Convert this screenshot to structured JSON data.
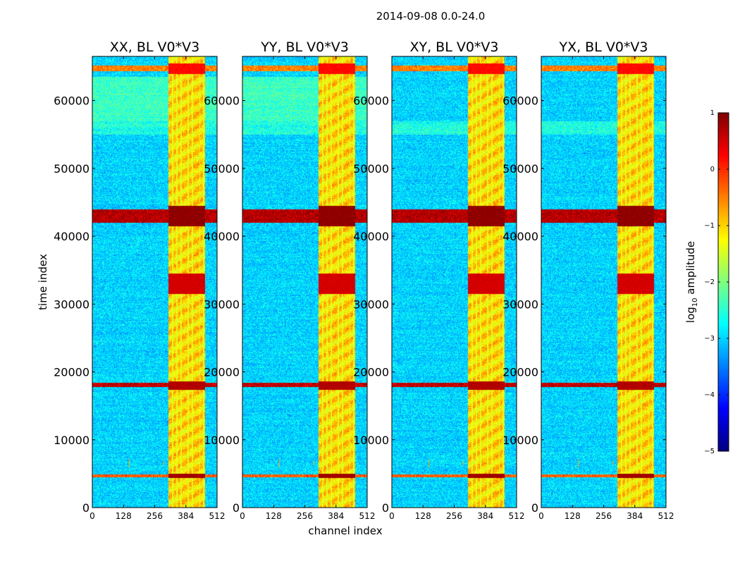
{
  "chart_data": {
    "type": "heatmap",
    "title": "2014-09-08 0.0-24.0",
    "xlabel": "channel index",
    "ylabel": "time index",
    "xlim": [
      0,
      512
    ],
    "ylim": [
      0,
      66500
    ],
    "xticks": [
      0,
      128,
      256,
      384,
      512
    ],
    "yticks": [
      0,
      10000,
      20000,
      30000,
      40000,
      50000,
      60000
    ],
    "panels": [
      {
        "title": "XX, BL V0*V3",
        "pol": "XX"
      },
      {
        "title": "YY, BL V0*V3",
        "pol": "YY"
      },
      {
        "title": "XY, BL V0*V3",
        "pol": "XY"
      },
      {
        "title": "YX, BL V0*V3",
        "pol": "YX"
      }
    ],
    "colorbar": {
      "label_main": "log",
      "label_sub": "10",
      "label_rest": " amplitude",
      "min": -5,
      "max": 1,
      "ticks": [
        1,
        0,
        -1,
        -2,
        -3,
        -4,
        -5
      ],
      "tick_labels": [
        "1",
        "0",
        "−1",
        "−2",
        "−3",
        "−4",
        "−5"
      ],
      "colormap": "jet"
    },
    "features": {
      "background_level": -3,
      "bright_channel_band": [
        310,
        460
      ],
      "bright_channel_lines": [
        328,
        345,
        362,
        392,
        410,
        440,
        455
      ],
      "saturated_time_rows": [
        {
          "t0": 4400,
          "t1": 5000,
          "level": 0.8
        },
        {
          "t0": 17400,
          "t1": 18600,
          "level": 0.7
        },
        {
          "t0": 31500,
          "t1": 34500,
          "level": 0.5
        },
        {
          "t0": 41500,
          "t1": 44500,
          "level": 0.9
        },
        {
          "t0": 64000,
          "t1": 65500,
          "level": 0.2
        }
      ],
      "bright_stripes_lr": [
        {
          "t0": 4500,
          "t1": 4900,
          "level": -0.3
        },
        {
          "t0": 17800,
          "t1": 18400,
          "level": 0.6
        },
        {
          "t0": 42000,
          "t1": 44000,
          "level": 0.7
        },
        {
          "t0": 64400,
          "t1": 65200,
          "level": -0.5
        }
      ],
      "rfi_spikes": [
        {
          "ch": 150,
          "t0": 6000,
          "t1": 7200
        },
        {
          "ch": 292,
          "t0": 6300,
          "t1": 6900
        }
      ]
    }
  }
}
